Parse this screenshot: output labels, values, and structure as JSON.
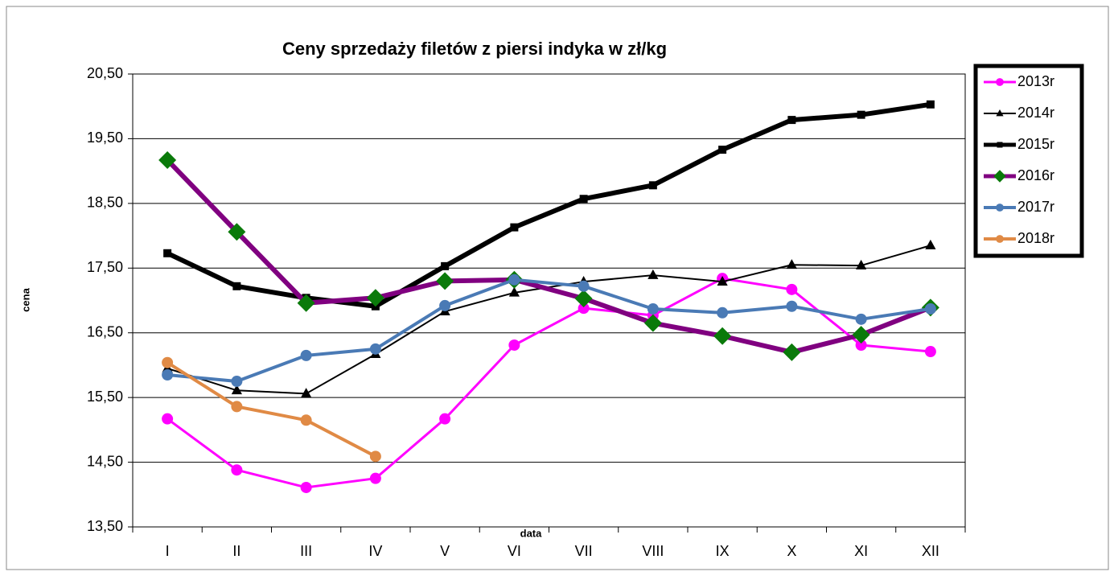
{
  "chart_data": {
    "type": "line",
    "title": "Ceny sprzedaży filetów z  piersi indyka w zł/kg",
    "x_label": "data",
    "y_label": "cena",
    "categories": [
      "I",
      "II",
      "III",
      "IV",
      "V",
      "VI",
      "VII",
      "VIII",
      "IX",
      "X",
      "XI",
      "XII"
    ],
    "ylim": [
      13.5,
      20.5
    ],
    "yticks": [
      {
        "value": 13.5,
        "label": "13,50"
      },
      {
        "value": 14.5,
        "label": "14,50"
      },
      {
        "value": 15.5,
        "label": "15,50"
      },
      {
        "value": 16.5,
        "label": "16,50"
      },
      {
        "value": 17.5,
        "label": "17,50"
      },
      {
        "value": 18.5,
        "label": "18,50"
      },
      {
        "value": 19.5,
        "label": "19,50"
      },
      {
        "value": 20.5,
        "label": "20,50"
      }
    ],
    "grid": true,
    "legend": "right",
    "series": [
      {
        "name": "2013r",
        "color": "#ff00ff",
        "marker": "circle",
        "line_width": 3,
        "values": [
          15.17,
          14.38,
          14.11,
          14.25,
          15.17,
          16.31,
          16.88,
          16.77,
          17.34,
          17.17,
          16.31,
          16.21
        ]
      },
      {
        "name": "2014r",
        "color": "#000000",
        "marker": "triangle",
        "line_width": 2,
        "values": [
          15.95,
          15.61,
          15.56,
          16.17,
          16.83,
          17.12,
          17.29,
          17.39,
          17.29,
          17.55,
          17.54,
          17.85
        ]
      },
      {
        "name": "2015r",
        "color": "#000000",
        "marker": "square",
        "line_width": 6,
        "values": [
          17.73,
          17.22,
          17.04,
          16.91,
          17.53,
          18.13,
          18.57,
          18.78,
          19.33,
          19.79,
          19.87,
          20.03
        ]
      },
      {
        "name": "2016r",
        "color": "#800080",
        "marker": "diamond",
        "line_width": 6,
        "values": [
          19.17,
          18.06,
          16.96,
          17.04,
          17.3,
          17.32,
          17.03,
          16.65,
          16.45,
          16.2,
          16.47,
          16.89
        ]
      },
      {
        "name": "2017r",
        "color": "#4a7ab5",
        "marker": "circle",
        "line_width": 4,
        "values": [
          15.85,
          15.75,
          16.15,
          16.25,
          16.92,
          17.32,
          17.22,
          16.87,
          16.81,
          16.91,
          16.71,
          16.87
        ]
      },
      {
        "name": "2018r",
        "color": "#e08a45",
        "marker": "circle",
        "line_width": 4,
        "values": [
          16.04,
          15.36,
          15.15,
          14.59,
          null,
          null,
          null,
          null,
          null,
          null,
          null,
          null
        ]
      }
    ]
  }
}
